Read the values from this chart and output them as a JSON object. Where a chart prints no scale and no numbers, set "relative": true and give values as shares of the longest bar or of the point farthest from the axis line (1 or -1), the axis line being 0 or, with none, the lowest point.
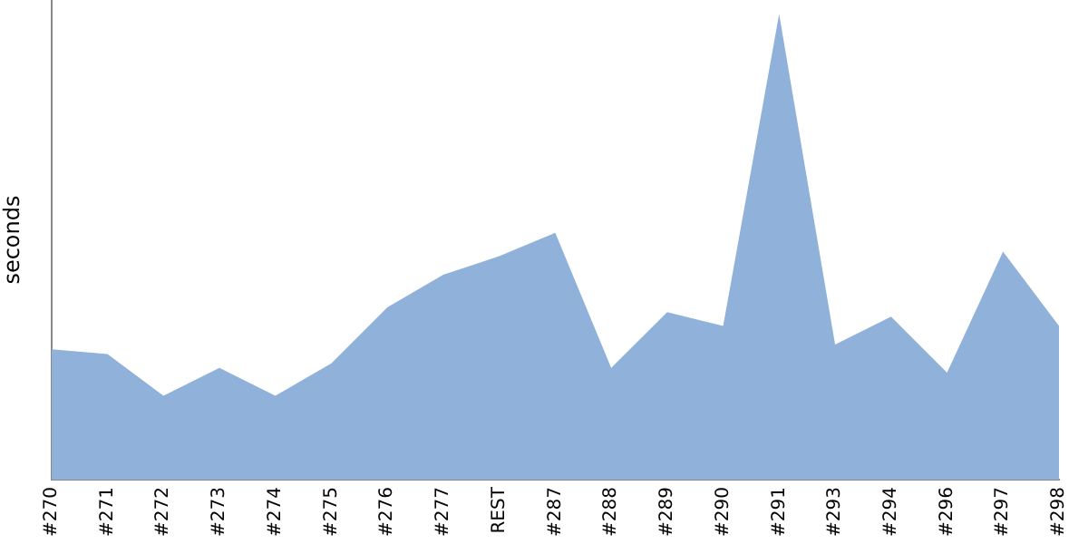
{
  "chart_data": {
    "type": "area",
    "ylabel": "seconds",
    "relative": true,
    "grid": false,
    "legend": false,
    "categories": [
      "#270",
      "#271",
      "#272",
      "#273",
      "#274",
      "#275",
      "#276",
      "#277",
      "REST",
      "#287",
      "#288",
      "#289",
      "#290",
      "#291",
      "#293",
      "#294",
      "#296",
      "#297",
      "#298"
    ],
    "series": [
      {
        "color": "#8fb1da",
        "values": [
          0.28,
          0.27,
          0.18,
          0.24,
          0.18,
          0.25,
          0.37,
          0.44,
          0.48,
          0.53,
          0.24,
          0.36,
          0.33,
          1,
          0.29,
          0.35,
          0.23,
          0.49,
          0.33
        ]
      }
    ]
  }
}
